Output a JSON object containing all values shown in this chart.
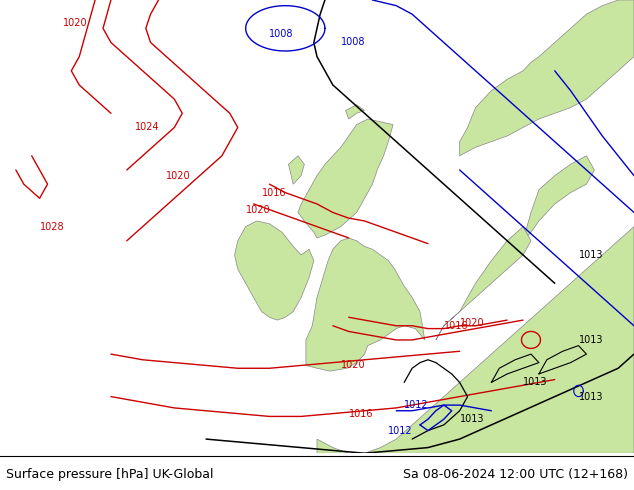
{
  "title_left": "Surface pressure [hPa] UK-Global",
  "title_right": "Sa 08-06-2024 12:00 UTC (12+168)",
  "bg_color": "#e0e0e0",
  "land_green": "#c8e6a0",
  "land_edge": "#888888",
  "red": "#cc0000",
  "black": "#000000",
  "blue": "#0000cc",
  "lw": 1.0,
  "label_fs": 7,
  "title_fs": 9,
  "figsize": [
    6.34,
    4.9
  ],
  "dpi": 100
}
